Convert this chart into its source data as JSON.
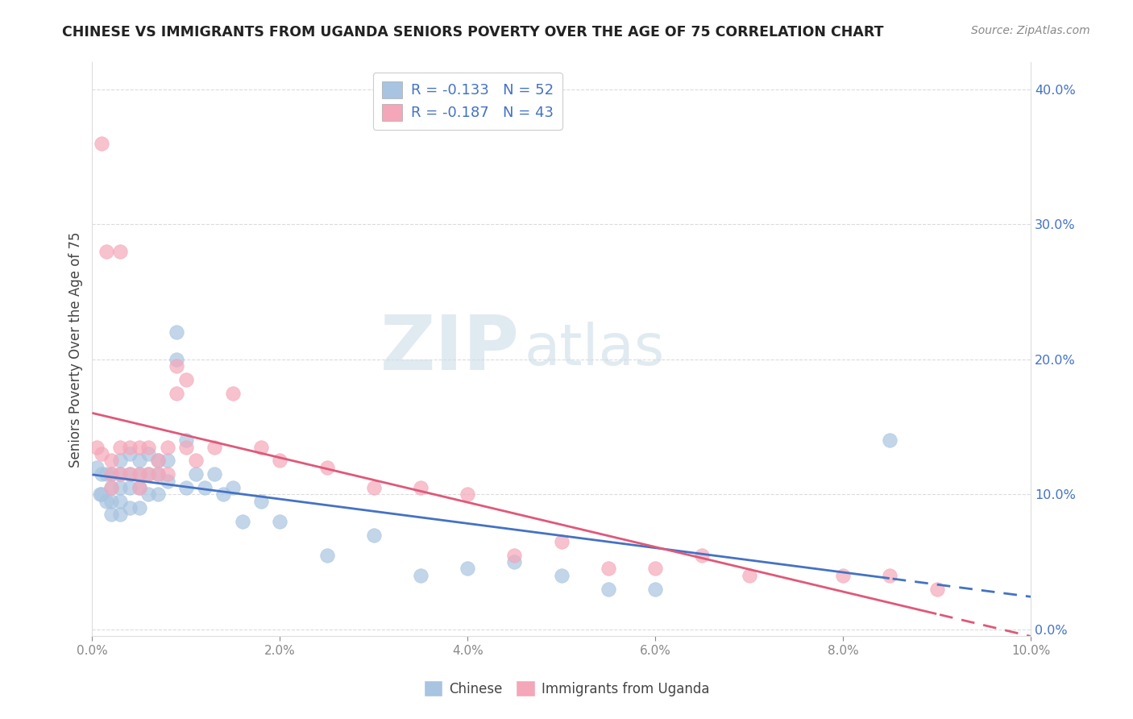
{
  "title": "CHINESE VS IMMIGRANTS FROM UGANDA SENIORS POVERTY OVER THE AGE OF 75 CORRELATION CHART",
  "source": "Source: ZipAtlas.com",
  "ylabel": "Seniors Poverty Over the Age of 75",
  "xlim": [
    0.0,
    0.1
  ],
  "ylim": [
    -0.005,
    0.42
  ],
  "chinese_color": "#a8c4e0",
  "uganda_color": "#f4a7b9",
  "chinese_line_color": "#4472c4",
  "uganda_line_color": "#e05878",
  "chinese_R": -0.133,
  "chinese_N": 52,
  "uganda_R": -0.187,
  "uganda_N": 43,
  "chinese_x": [
    0.0005,
    0.0008,
    0.001,
    0.001,
    0.0015,
    0.0015,
    0.002,
    0.002,
    0.002,
    0.002,
    0.003,
    0.003,
    0.003,
    0.003,
    0.003,
    0.004,
    0.004,
    0.004,
    0.004,
    0.005,
    0.005,
    0.005,
    0.005,
    0.006,
    0.006,
    0.006,
    0.007,
    0.007,
    0.007,
    0.008,
    0.008,
    0.009,
    0.009,
    0.01,
    0.01,
    0.011,
    0.012,
    0.013,
    0.014,
    0.015,
    0.016,
    0.018,
    0.02,
    0.025,
    0.03,
    0.035,
    0.04,
    0.045,
    0.05,
    0.055,
    0.06,
    0.085
  ],
  "chinese_y": [
    0.12,
    0.1,
    0.115,
    0.1,
    0.115,
    0.095,
    0.115,
    0.105,
    0.095,
    0.085,
    0.125,
    0.115,
    0.105,
    0.095,
    0.085,
    0.13,
    0.115,
    0.105,
    0.09,
    0.125,
    0.115,
    0.105,
    0.09,
    0.13,
    0.115,
    0.1,
    0.125,
    0.115,
    0.1,
    0.125,
    0.11,
    0.22,
    0.2,
    0.14,
    0.105,
    0.115,
    0.105,
    0.115,
    0.1,
    0.105,
    0.08,
    0.095,
    0.08,
    0.055,
    0.07,
    0.04,
    0.045,
    0.05,
    0.04,
    0.03,
    0.03,
    0.14
  ],
  "uganda_x": [
    0.0005,
    0.001,
    0.001,
    0.0015,
    0.002,
    0.002,
    0.002,
    0.003,
    0.003,
    0.003,
    0.004,
    0.004,
    0.005,
    0.005,
    0.005,
    0.006,
    0.006,
    0.007,
    0.007,
    0.008,
    0.008,
    0.009,
    0.009,
    0.01,
    0.01,
    0.011,
    0.013,
    0.015,
    0.018,
    0.02,
    0.025,
    0.03,
    0.035,
    0.04,
    0.045,
    0.05,
    0.055,
    0.06,
    0.065,
    0.07,
    0.08,
    0.085,
    0.09
  ],
  "uganda_y": [
    0.135,
    0.36,
    0.13,
    0.28,
    0.125,
    0.115,
    0.105,
    0.28,
    0.135,
    0.115,
    0.135,
    0.115,
    0.135,
    0.115,
    0.105,
    0.135,
    0.115,
    0.125,
    0.115,
    0.135,
    0.115,
    0.195,
    0.175,
    0.185,
    0.135,
    0.125,
    0.135,
    0.175,
    0.135,
    0.125,
    0.12,
    0.105,
    0.105,
    0.1,
    0.055,
    0.065,
    0.045,
    0.045,
    0.055,
    0.04,
    0.04,
    0.04,
    0.03
  ],
  "watermark_ZIP": "ZIP",
  "watermark_atlas": "atlas",
  "background_color": "#ffffff",
  "grid_color": "#cccccc",
  "title_color": "#222222",
  "axis_label_color": "#444444",
  "tick_color_right": "#4472c4",
  "tick_color_left": "#aaaaaa"
}
